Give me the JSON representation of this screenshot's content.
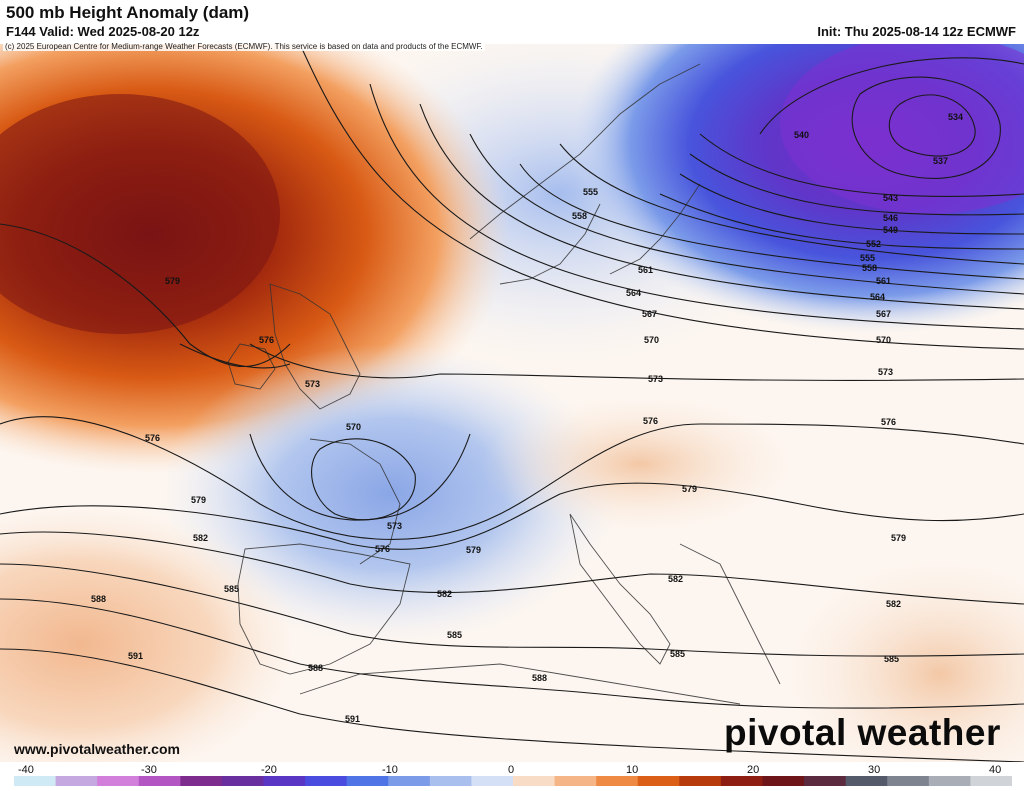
{
  "header": {
    "title": "500 mb Height Anomaly (dam)",
    "valid": "F144 Valid: Wed 2025-08-20 12z",
    "init": "Init: Thu 2025-08-14 12z ECMWF",
    "copyright": "(c) 2025 European Centre for Medium-range Weather Forecasts (ECMWF). This service is based on data and products of the ECMWF."
  },
  "footer": {
    "site": "www.pivotalweather.com",
    "logo": "pivotal weather"
  },
  "colorbar": {
    "ticks": [
      "-40",
      "-30",
      "-20",
      "-10",
      "0",
      "10",
      "20",
      "30",
      "40"
    ],
    "colors": [
      "#cfe9f5",
      "#c6a8e0",
      "#d27fdb",
      "#b455c4",
      "#7e2d8e",
      "#6a2f9f",
      "#5a36c4",
      "#4a4ce0",
      "#4f74e6",
      "#7b9be9",
      "#a9bfee",
      "#d3e0f5",
      "#f8dcc6",
      "#f5b587",
      "#ef8a45",
      "#db5f17",
      "#b63a0c",
      "#8e1d12",
      "#6e1519",
      "#5b2a3e",
      "#545a6a",
      "#7e8591",
      "#a9aeb6",
      "#d0d3d8"
    ]
  },
  "contours": [
    {
      "label": "534"
    },
    {
      "label": "537"
    },
    {
      "label": "540"
    },
    {
      "label": "543"
    },
    {
      "label": "546"
    },
    {
      "label": "549"
    },
    {
      "label": "552"
    },
    {
      "label": "555"
    },
    {
      "label": "558"
    },
    {
      "label": "561"
    },
    {
      "label": "564"
    },
    {
      "label": "567"
    },
    {
      "label": "570"
    },
    {
      "label": "573"
    },
    {
      "label": "576"
    },
    {
      "label": "579"
    },
    {
      "label": "582"
    },
    {
      "label": "585"
    },
    {
      "label": "588"
    },
    {
      "label": "591"
    }
  ],
  "colors": {
    "negative_anomaly": "#5a36c4",
    "positive_anomaly": "#b63a0c",
    "contour": "#1a1a1a"
  }
}
